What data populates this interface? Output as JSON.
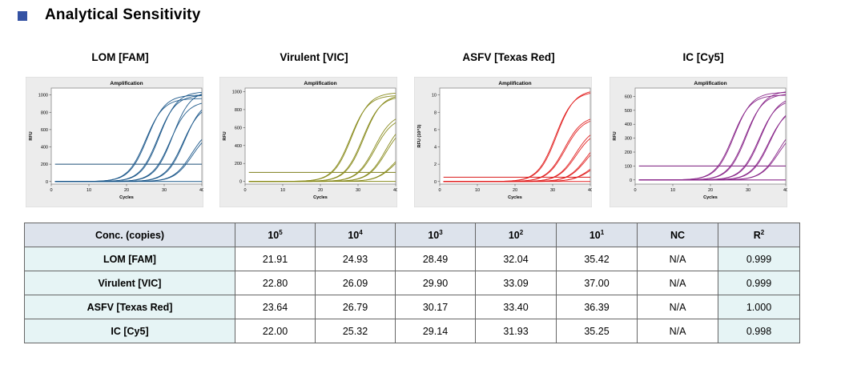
{
  "page": {
    "title": "Analytical Sensitivity",
    "title_square_color": "#3452a3"
  },
  "charts": [
    {
      "panel_title": "LOM [FAM]",
      "title": "Amplification",
      "xlabel": "Cycles",
      "ylabel": "RFU",
      "color": "#1f5a8c",
      "threshold_color": "#1b4e77",
      "xlim": [
        0,
        40
      ],
      "ylim": [
        -30,
        1080
      ],
      "xticks": [
        0,
        10,
        20,
        30,
        40
      ],
      "yticks": [
        0,
        200,
        400,
        600,
        800,
        1000
      ],
      "ytick_labels": [
        "0",
        "200",
        "400",
        "600",
        "800",
        "1000"
      ],
      "threshold": 200,
      "curves": [
        {
          "ct": 21.9,
          "max": 960
        },
        {
          "ct": 22.2,
          "max": 1000
        },
        {
          "ct": 25.0,
          "max": 1000
        },
        {
          "ct": 25.3,
          "max": 1040
        },
        {
          "ct": 28.5,
          "max": 930
        },
        {
          "ct": 28.8,
          "max": 1050
        },
        {
          "ct": 32.0,
          "max": 900
        },
        {
          "ct": 32.3,
          "max": 950
        },
        {
          "ct": 35.4,
          "max": 640
        },
        {
          "ct": 35.8,
          "max": 600
        }
      ]
    },
    {
      "panel_title": "Virulent [VIC]",
      "title": "Amplification",
      "xlabel": "Cycles",
      "ylabel": "RFU",
      "color": "#8a8c1f",
      "threshold_color": "#7d7e1a",
      "xlim": [
        0,
        40
      ],
      "ylim": [
        -30,
        1040
      ],
      "xticks": [
        0,
        10,
        20,
        30,
        40
      ],
      "yticks": [
        0,
        200,
        400,
        600,
        800,
        1000
      ],
      "ytick_labels": [
        "0",
        "200",
        "400",
        "600",
        "800",
        "1000"
      ],
      "threshold": 100,
      "curves": [
        {
          "ct": 22.8,
          "max": 960
        },
        {
          "ct": 23.1,
          "max": 990
        },
        {
          "ct": 26.1,
          "max": 950
        },
        {
          "ct": 26.4,
          "max": 970
        },
        {
          "ct": 29.9,
          "max": 760
        },
        {
          "ct": 30.2,
          "max": 720
        },
        {
          "ct": 33.1,
          "max": 700
        },
        {
          "ct": 33.4,
          "max": 650
        },
        {
          "ct": 37.0,
          "max": 420
        },
        {
          "ct": 37.3,
          "max": 380
        }
      ]
    },
    {
      "panel_title": "ASFV [Texas Red]",
      "title": "Amplification",
      "xlabel": "Cycles",
      "ylabel": "RFU (10^3)",
      "color": "#e22525",
      "threshold_color": "#d91818",
      "xlim": [
        0,
        40
      ],
      "ylim": [
        -0.3,
        10.8
      ],
      "xticks": [
        0,
        10,
        20,
        30,
        40
      ],
      "yticks": [
        0,
        2,
        4,
        6,
        8,
        10
      ],
      "ytick_labels": [
        "0",
        "2",
        "4",
        "6",
        "8",
        "10"
      ],
      "threshold": 0.5,
      "curves": [
        {
          "ct": 23.6,
          "max": 10.4
        },
        {
          "ct": 23.9,
          "max": 10.6
        },
        {
          "ct": 26.8,
          "max": 7.6
        },
        {
          "ct": 27.1,
          "max": 7.4
        },
        {
          "ct": 30.2,
          "max": 6.4
        },
        {
          "ct": 30.5,
          "max": 6.0
        },
        {
          "ct": 33.4,
          "max": 5.4
        },
        {
          "ct": 33.7,
          "max": 5.0
        },
        {
          "ct": 36.4,
          "max": 3.0
        },
        {
          "ct": 36.7,
          "max": 2.6
        }
      ]
    },
    {
      "panel_title": "IC [Cy5]",
      "title": "Amplification",
      "xlabel": "Cycles",
      "ylabel": "RFU",
      "color": "#8b2a8c",
      "threshold_color": "#7a1a7b",
      "xlim": [
        0,
        40
      ],
      "ylim": [
        -30,
        660
      ],
      "xticks": [
        0,
        10,
        20,
        30,
        40
      ],
      "yticks": [
        0,
        100,
        200,
        300,
        400,
        500,
        600
      ],
      "ytick_labels": [
        "0",
        "100",
        "200",
        "300",
        "400",
        "500",
        "600"
      ],
      "threshold": 100,
      "curves": [
        {
          "ct": 22.0,
          "max": 610
        },
        {
          "ct": 22.3,
          "max": 630
        },
        {
          "ct": 25.3,
          "max": 620
        },
        {
          "ct": 25.6,
          "max": 640
        },
        {
          "ct": 29.1,
          "max": 580
        },
        {
          "ct": 29.4,
          "max": 600
        },
        {
          "ct": 31.9,
          "max": 520
        },
        {
          "ct": 32.2,
          "max": 540
        },
        {
          "ct": 35.3,
          "max": 420
        },
        {
          "ct": 35.6,
          "max": 380
        }
      ]
    }
  ],
  "table": {
    "header": {
      "conc": "Conc. (copies)",
      "c1_base": "10",
      "c1_exp": "5",
      "c2_base": "10",
      "c2_exp": "4",
      "c3_base": "10",
      "c3_exp": "3",
      "c4_base": "10",
      "c4_exp": "2",
      "c5_base": "10",
      "c5_exp": "1",
      "nc": "NC",
      "r2_base": "R",
      "r2_exp": "2"
    },
    "rows": [
      {
        "label": "LOM [FAM]",
        "values": [
          "21.91",
          "24.93",
          "28.49",
          "32.04",
          "35.42"
        ],
        "nc": "N/A",
        "r2": "0.999"
      },
      {
        "label": "Virulent [VIC]",
        "values": [
          "22.80",
          "26.09",
          "29.90",
          "33.09",
          "37.00"
        ],
        "nc": "N/A",
        "r2": "0.999"
      },
      {
        "label": "ASFV [Texas Red]",
        "values": [
          "23.64",
          "26.79",
          "30.17",
          "33.40",
          "36.39"
        ],
        "nc": "N/A",
        "r2": "1.000"
      },
      {
        "label": "IC [Cy5]",
        "values": [
          "22.00",
          "25.32",
          "29.14",
          "31.93",
          "35.25"
        ],
        "nc": "N/A",
        "r2": "0.998"
      }
    ]
  },
  "chart_data": [
    {
      "type": "table",
      "title": "",
      "columns": [
        "Conc. (copies)",
        "10^5",
        "10^4",
        "10^3",
        "10^2",
        "10^1",
        "NC",
        "R^2"
      ],
      "rows": [
        [
          "LOM [FAM]",
          21.91,
          24.93,
          28.49,
          32.04,
          35.42,
          "N/A",
          0.999
        ],
        [
          "Virulent [VIC]",
          22.8,
          26.09,
          29.9,
          33.09,
          37.0,
          "N/A",
          0.999
        ],
        [
          "ASFV [Texas Red]",
          23.64,
          26.79,
          30.17,
          33.4,
          36.39,
          "N/A",
          1.0
        ],
        [
          "IC [Cy5]",
          22.0,
          25.32,
          29.14,
          31.93,
          35.25,
          "N/A",
          0.998
        ]
      ]
    }
  ]
}
